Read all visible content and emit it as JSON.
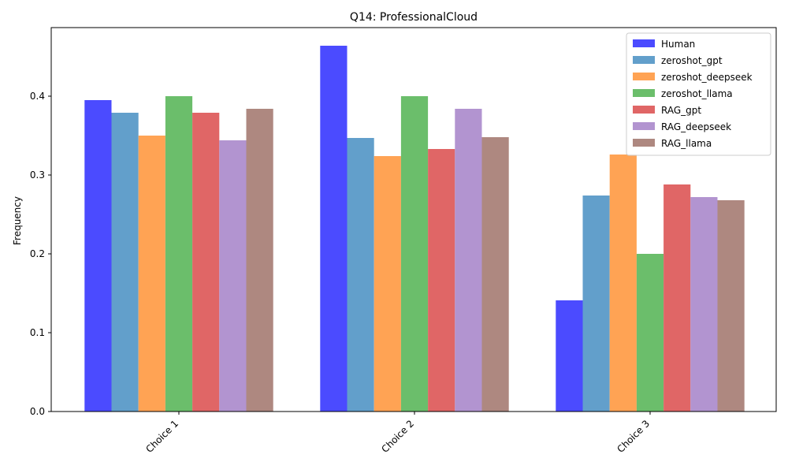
{
  "chart_data": {
    "type": "bar",
    "title": "Q14: ProfessionalCloud",
    "xlabel": "",
    "ylabel": "Frequency",
    "categories": [
      "Choice 1",
      "Choice 2",
      "Choice 3"
    ],
    "ylim": [
      0,
      0.487
    ],
    "yticks": [
      0.0,
      0.1,
      0.2,
      0.3,
      0.4
    ],
    "ytick_labels": [
      "0.0",
      "0.1",
      "0.2",
      "0.3",
      "0.4"
    ],
    "grid": false,
    "legend_position": "top-right",
    "series": [
      {
        "name": "Human",
        "color": "#4b4bff",
        "values": [
          0.395,
          0.464,
          0.141
        ]
      },
      {
        "name": "zeroshot_gpt",
        "color": "#629fcb",
        "values": [
          0.379,
          0.347,
          0.274
        ]
      },
      {
        "name": "zeroshot_deepseek",
        "color": "#ffa354",
        "values": [
          0.35,
          0.324,
          0.326
        ]
      },
      {
        "name": "zeroshot_llama",
        "color": "#6bbe6b",
        "values": [
          0.4,
          0.4,
          0.2
        ]
      },
      {
        "name": "RAG_gpt",
        "color": "#e06666",
        "values": [
          0.379,
          0.333,
          0.288
        ]
      },
      {
        "name": "RAG_deepseek",
        "color": "#b294d0",
        "values": [
          0.344,
          0.384,
          0.272
        ]
      },
      {
        "name": "RAG_llama",
        "color": "#ae8880",
        "values": [
          0.384,
          0.348,
          0.268
        ]
      }
    ]
  }
}
